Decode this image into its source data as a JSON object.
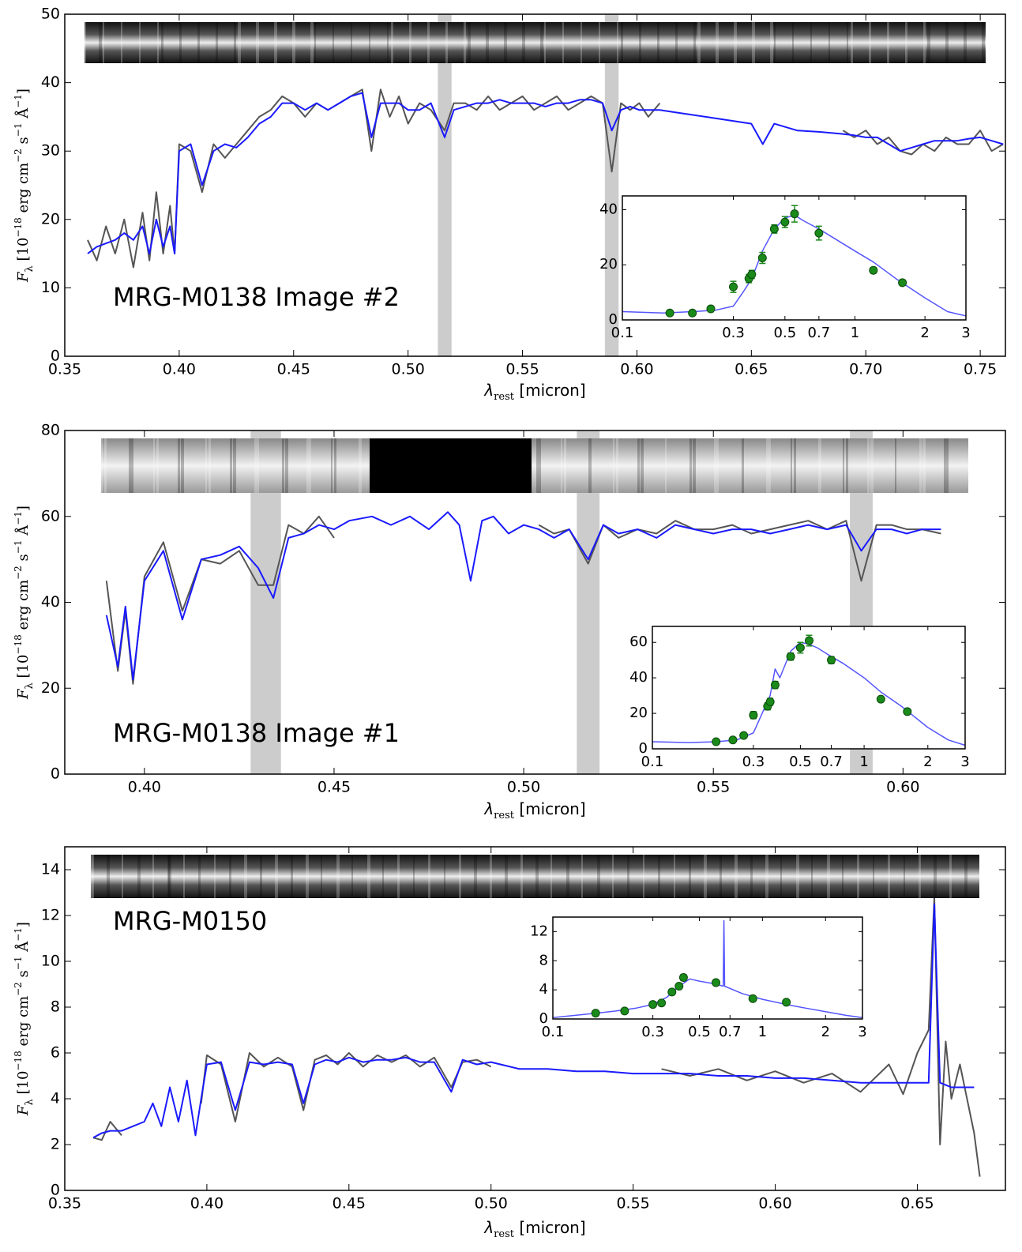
{
  "chart_data": [
    {
      "type": "line",
      "annotation": "MRG-M0138 Image #2",
      "xlabel": [
        "λ",
        "rest",
        " [micron]"
      ],
      "ylabel": [
        "F",
        "λ",
        " [10",
        "−18",
        " erg cm",
        "−2",
        " s",
        "−1",
        " Å",
        "−1",
        "]"
      ],
      "xlim": [
        0.35,
        0.761
      ],
      "ylim": [
        0,
        50
      ],
      "xticks": [
        0.35,
        {
          "value": 0.4,
          "label": "0.40"
        },
        0.45,
        {
          "value": 0.5,
          "label": "0.50"
        },
        0.55,
        {
          "value": 0.6,
          "label": "0.60"
        },
        0.65,
        {
          "value": 0.7,
          "label": "0.70"
        },
        0.75
      ],
      "yticks": [
        0,
        10,
        20,
        30,
        40,
        50
      ],
      "bands": [
        [
          0.513,
          0.519
        ],
        [
          0.586,
          0.592
        ]
      ],
      "x": [
        0.36,
        0.364,
        0.368,
        0.372,
        0.376,
        0.38,
        0.384,
        0.387,
        0.39,
        0.393,
        0.396,
        0.398,
        0.4,
        0.405,
        0.41,
        0.415,
        0.42,
        0.425,
        0.43,
        0.435,
        0.44,
        0.445,
        0.45,
        0.455,
        0.46,
        0.465,
        0.47,
        0.475,
        0.48,
        0.484,
        0.488,
        0.492,
        0.496,
        0.5,
        0.505,
        0.51,
        0.516,
        0.52,
        0.525,
        0.53,
        0.535,
        0.54,
        0.545,
        0.55,
        0.555,
        0.56,
        0.565,
        0.57,
        0.575,
        0.58,
        0.585,
        0.589,
        0.593,
        0.597,
        0.601,
        0.605,
        0.61,
        0.62,
        0.63,
        0.64,
        0.65,
        0.655,
        0.66,
        0.67,
        0.68,
        0.69,
        0.695,
        0.7,
        0.705,
        0.71,
        0.715,
        0.72,
        0.725,
        0.73,
        0.735,
        0.74,
        0.745,
        0.75,
        0.755,
        0.76
      ],
      "series": [
        {
          "type": "line",
          "color": "#555555",
          "values": [
            17,
            14,
            19,
            15,
            20,
            13,
            21,
            14,
            24,
            15,
            22,
            15,
            31,
            30,
            24,
            31,
            29,
            31,
            33,
            35,
            36,
            38,
            37,
            35,
            37,
            36,
            37,
            38,
            39,
            30,
            39,
            35,
            38,
            34,
            37,
            36,
            33,
            37,
            37,
            36,
            38,
            36,
            37,
            38,
            36,
            37,
            38,
            36,
            37,
            38,
            37,
            27,
            37,
            36,
            37,
            35,
            37,
            null,
            null,
            null,
            null,
            null,
            null,
            null,
            null,
            33,
            32,
            33,
            31,
            32,
            30,
            29.5,
            31,
            30,
            32,
            31,
            31,
            33,
            30,
            31
          ]
        },
        {
          "type": "line",
          "color": "#1a1aff",
          "values": [
            15,
            16,
            16.5,
            17,
            18,
            17,
            19,
            15,
            20,
            16,
            19,
            15,
            30,
            31,
            25,
            30,
            31,
            30.5,
            32,
            34,
            35,
            37,
            37,
            36,
            37,
            36,
            37,
            38,
            38.5,
            32,
            37,
            37,
            37,
            36,
            36,
            37,
            32,
            36,
            36.5,
            37,
            37,
            37.5,
            37,
            37,
            37,
            36.5,
            37,
            37,
            37.5,
            37.5,
            37,
            33,
            36,
            36.5,
            36,
            36,
            36,
            35.5,
            35,
            34.5,
            34,
            31,
            34,
            33,
            32.8,
            32.5,
            32.3,
            32,
            32,
            31,
            30,
            30.5,
            31,
            31.5,
            31.5,
            31.5,
            31.8,
            32,
            31.5,
            31
          ]
        }
      ],
      "inset": {
        "type": "line",
        "xscale": "log",
        "xlim": [
          0.1,
          3
        ],
        "ylim": [
          0,
          45
        ],
        "xticks": [
          0.1,
          0.3,
          0.5,
          0.7,
          1,
          2,
          3
        ],
        "yticks": [
          0,
          20,
          40
        ],
        "series": [
          {
            "type": "line",
            "color": "#5555ff",
            "x": [
              0.1,
              0.15,
              0.2,
              0.25,
              0.3,
              0.33,
              0.36,
              0.38,
              0.4,
              0.45,
              0.5,
              0.55,
              0.6,
              0.7,
              0.8,
              1,
              1.2,
              1.5,
              2,
              2.5,
              2.8,
              3
            ],
            "values": [
              3,
              2.5,
              3,
              3.5,
              5,
              10,
              15,
              20,
              25,
              33,
              37,
              38,
              36,
              33,
              30,
              25,
              21,
              15,
              8,
              3,
              2,
              1.5
            ]
          },
          {
            "type": "scatter",
            "color": "#1a8a1a",
            "x": [
              0.16,
              0.2,
              0.24,
              0.3,
              0.35,
              0.36,
              0.4,
              0.45,
              0.5,
              0.55,
              0.7,
              1.2,
              1.6
            ],
            "values": [
              2.5,
              2.5,
              4,
              12,
              15,
              16.5,
              22.5,
              33,
              35.5,
              38.5,
              31.5,
              18,
              13.5
            ],
            "errors": [
              0.8,
              0.8,
              1,
              2,
              1.5,
              1.5,
              2,
              1.5,
              2,
              3,
              2.5,
              1,
              1
            ]
          }
        ]
      }
    },
    {
      "type": "line",
      "annotation": "MRG-M0138 Image #1",
      "xlabel": [
        "λ",
        "rest",
        " [micron]"
      ],
      "ylabel": [
        "F",
        "λ",
        " [10",
        "−18",
        " erg cm",
        "−2",
        " s",
        "−1",
        " Å",
        "−1",
        "]"
      ],
      "xlim": [
        0.379,
        0.627
      ],
      "ylim": [
        0,
        80
      ],
      "xticks": [
        {
          "value": 0.4,
          "label": "0.40"
        },
        0.45,
        {
          "value": 0.5,
          "label": "0.50"
        },
        0.55,
        {
          "value": 0.6,
          "label": "0.60"
        }
      ],
      "yticks": [
        0,
        20,
        40,
        60,
        80
      ],
      "bands": [
        [
          0.428,
          0.436
        ],
        [
          0.514,
          0.52
        ],
        [
          0.586,
          0.592
        ]
      ],
      "x": [
        0.39,
        0.393,
        0.395,
        0.397,
        0.4,
        0.405,
        0.41,
        0.415,
        0.42,
        0.425,
        0.43,
        0.434,
        0.438,
        0.442,
        0.446,
        0.45,
        0.454,
        0.46,
        0.465,
        0.47,
        0.475,
        0.48,
        0.483,
        0.486,
        0.489,
        0.492,
        0.496,
        0.5,
        0.504,
        0.508,
        0.512,
        0.517,
        0.521,
        0.525,
        0.53,
        0.535,
        0.54,
        0.545,
        0.55,
        0.555,
        0.56,
        0.565,
        0.57,
        0.575,
        0.58,
        0.585,
        0.589,
        0.593,
        0.597,
        0.601,
        0.605,
        0.61
      ],
      "series": [
        {
          "type": "line",
          "color": "#555555",
          "values": [
            45,
            24,
            38,
            21,
            46,
            54,
            38,
            50,
            49,
            52,
            44,
            44,
            58,
            56,
            60,
            55,
            null,
            null,
            null,
            null,
            null,
            null,
            null,
            null,
            null,
            null,
            null,
            null,
            58,
            56,
            57,
            49,
            58,
            55,
            57,
            56,
            59,
            57,
            57,
            58,
            56,
            57,
            58,
            59,
            57,
            59,
            45,
            58,
            58,
            57,
            57,
            56
          ]
        },
        {
          "type": "line",
          "color": "#1a1aff",
          "values": [
            37,
            25,
            39,
            22,
            45,
            52,
            36,
            50,
            51,
            53,
            48,
            41,
            55,
            56,
            58,
            57,
            59,
            60,
            58,
            60,
            57,
            61,
            58,
            45,
            59,
            60,
            56,
            58,
            57,
            55,
            57,
            50,
            58,
            56,
            57,
            55,
            58,
            57,
            56,
            57,
            57,
            56,
            57,
            58,
            57,
            58,
            52,
            57,
            57,
            56,
            57,
            57
          ]
        }
      ],
      "inset": {
        "type": "line",
        "xscale": "log",
        "xlim": [
          0.1,
          3
        ],
        "ylim": [
          0,
          69
        ],
        "xticks": [
          0.1,
          0.3,
          0.5,
          0.7,
          1,
          2,
          3
        ],
        "yticks": [
          0,
          20,
          40,
          60
        ],
        "series": [
          {
            "type": "line",
            "color": "#5555ff",
            "x": [
              0.1,
              0.15,
              0.2,
              0.25,
              0.3,
              0.33,
              0.36,
              0.38,
              0.4,
              0.45,
              0.5,
              0.55,
              0.6,
              0.7,
              0.8,
              1,
              1.2,
              1.5,
              2,
              2.5,
              3
            ],
            "values": [
              4,
              3.5,
              4,
              5,
              9,
              20,
              30,
              45,
              40,
              55,
              60,
              59,
              57,
              52,
              48,
              40,
              32,
              24,
              12,
              5,
              2
            ]
          },
          {
            "type": "scatter",
            "color": "#1a8a1a",
            "x": [
              0.2,
              0.24,
              0.27,
              0.3,
              0.35,
              0.36,
              0.38,
              0.45,
              0.5,
              0.55,
              0.7,
              1.2,
              1.6
            ],
            "values": [
              4,
              5,
              7.5,
              19,
              24,
              26.5,
              36,
              52,
              57,
              61,
              50,
              28,
              21
            ],
            "errors": [
              1,
              1,
              1,
              2,
              2,
              2,
              2,
              2,
              3,
              3,
              2,
              1,
              1
            ]
          }
        ]
      }
    },
    {
      "type": "line",
      "annotation": "MRG-M0150",
      "xlabel": [
        "λ",
        "rest",
        " [micron]"
      ],
      "ylabel": [
        "F",
        "λ",
        " [10",
        "−18",
        " erg cm",
        "−2",
        " s",
        "−1",
        " Å",
        "−1",
        "]"
      ],
      "xlim": [
        0.35,
        0.681
      ],
      "ylim": [
        0,
        15
      ],
      "xticks": [
        0.35,
        {
          "value": 0.4,
          "label": "0.40"
        },
        0.45,
        {
          "value": 0.5,
          "label": "0.50"
        },
        0.55,
        {
          "value": 0.6,
          "label": "0.60"
        },
        0.65
      ],
      "yticks": [
        0,
        2,
        4,
        6,
        8,
        10,
        12,
        14
      ],
      "x": [
        0.36,
        0.363,
        0.366,
        0.37,
        0.374,
        0.378,
        0.381,
        0.384,
        0.387,
        0.39,
        0.393,
        0.396,
        0.398,
        0.4,
        0.405,
        0.41,
        0.415,
        0.42,
        0.425,
        0.43,
        0.434,
        0.438,
        0.442,
        0.446,
        0.45,
        0.455,
        0.46,
        0.465,
        0.47,
        0.475,
        0.48,
        0.486,
        0.49,
        0.495,
        0.5,
        0.51,
        0.52,
        0.53,
        0.54,
        0.55,
        0.56,
        0.57,
        0.58,
        0.59,
        0.6,
        0.61,
        0.62,
        0.63,
        0.64,
        0.645,
        0.65,
        0.654,
        0.656,
        0.658,
        0.66,
        0.662,
        0.665,
        0.67,
        0.672
      ],
      "series": [
        {
          "type": "line",
          "color": "#555555",
          "values": [
            2.3,
            2.2,
            3.0,
            2.4,
            null,
            null,
            null,
            null,
            null,
            null,
            null,
            null,
            3.8,
            5.9,
            5.5,
            3.0,
            6.0,
            5.4,
            5.8,
            5.4,
            3.5,
            5.7,
            5.9,
            5.5,
            6.0,
            5.4,
            5.9,
            5.6,
            5.9,
            5.4,
            5.8,
            4.5,
            5.6,
            5.7,
            5.4,
            null,
            null,
            null,
            null,
            null,
            5.3,
            5.0,
            5.3,
            4.8,
            5.2,
            4.7,
            5.1,
            4.3,
            5.5,
            4.2,
            6.0,
            7.0,
            12.8,
            2.0,
            6.5,
            4.0,
            5.5,
            2.5,
            0.6
          ]
        },
        {
          "type": "line",
          "color": "#1a1aff",
          "values": [
            2.3,
            2.5,
            2.6,
            2.6,
            2.8,
            3.0,
            3.8,
            2.8,
            4.5,
            3.0,
            4.8,
            2.4,
            4.0,
            5.5,
            5.6,
            3.5,
            5.6,
            5.5,
            5.6,
            5.5,
            3.8,
            5.5,
            5.7,
            5.6,
            5.8,
            5.6,
            5.7,
            5.7,
            5.8,
            5.6,
            5.6,
            4.3,
            5.7,
            5.5,
            5.6,
            5.3,
            5.3,
            5.2,
            5.2,
            5.1,
            5.1,
            5.1,
            5.0,
            5.0,
            4.9,
            4.9,
            4.8,
            4.7,
            4.7,
            4.7,
            4.7,
            4.7,
            12.5,
            4.7,
            4.6,
            4.5,
            4.5,
            4.5,
            null
          ]
        }
      ],
      "inset": {
        "type": "line",
        "xscale": "log",
        "xlim": [
          0.1,
          3
        ],
        "ylim": [
          0,
          14
        ],
        "xticks": [
          0.1,
          0.3,
          0.5,
          0.7,
          1,
          2,
          3
        ],
        "yticks": [
          0,
          4,
          8,
          12
        ],
        "series": [
          {
            "type": "line",
            "color": "#5555ff",
            "x": [
              0.1,
              0.15,
              0.2,
              0.25,
              0.3,
              0.35,
              0.4,
              0.45,
              0.5,
              0.6,
              0.65,
              0.655,
              0.66,
              0.8,
              1,
              1.3,
              1.6,
              2,
              2.5,
              3
            ],
            "values": [
              0.2,
              0.7,
              1.1,
              1.5,
              2,
              3,
              4.5,
              5.5,
              5.2,
              4.8,
              4.5,
              13.5,
              4.5,
              3.5,
              2.7,
              2,
              1.5,
              1,
              0.5,
              0.2
            ]
          },
          {
            "type": "scatter",
            "color": "#1a8a1a",
            "x": [
              0.16,
              0.22,
              0.3,
              0.33,
              0.37,
              0.4,
              0.42,
              0.6,
              0.9,
              1.3
            ],
            "values": [
              0.8,
              1.1,
              2,
              2.2,
              3.7,
              4.5,
              5.7,
              5,
              2.8,
              2.3
            ],
            "errors": [
              0.2,
              0.2,
              0.3,
              0.3,
              0.3,
              0.3,
              0.4,
              0.3,
              0.3,
              0.3
            ]
          }
        ]
      }
    }
  ]
}
